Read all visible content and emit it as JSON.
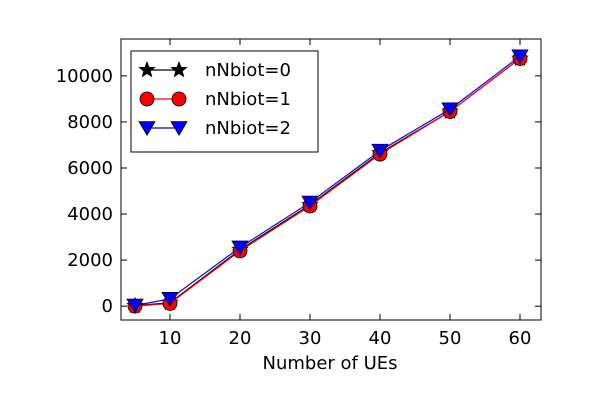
{
  "chart_data": {
    "type": "line",
    "xlabel": "Number of UEs",
    "ylabel": "",
    "xlim": [
      3,
      63
    ],
    "ylim": [
      -600,
      11600
    ],
    "xticks": [
      10,
      20,
      30,
      40,
      50,
      60
    ],
    "yticks": [
      0,
      2000,
      4000,
      6000,
      8000,
      10000
    ],
    "legend_position": "top-left",
    "grid": false,
    "x": [
      5,
      10,
      20,
      30,
      40,
      50,
      60
    ],
    "series": [
      {
        "name": "nNbiot=0",
        "color": "#000000",
        "marker": "star",
        "values": [
          20,
          150,
          2450,
          4400,
          6650,
          8450,
          10750
        ]
      },
      {
        "name": "nNbiot=1",
        "color": "#ff0000",
        "marker": "circle",
        "values": [
          0,
          120,
          2400,
          4350,
          6600,
          8450,
          10750
        ]
      },
      {
        "name": "nNbiot=2",
        "color": "#0000ff",
        "marker": "triangle-down",
        "values": [
          30,
          320,
          2550,
          4500,
          6750,
          8550,
          10850
        ]
      }
    ]
  }
}
